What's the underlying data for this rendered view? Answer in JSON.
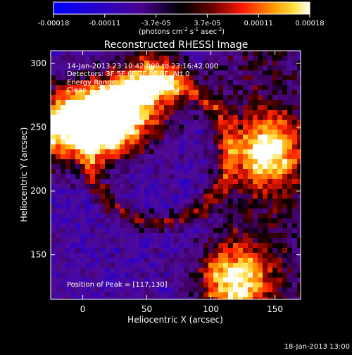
{
  "chart_data": {
    "type": "heatmap",
    "title": "Reconstructed RHESSI Image",
    "xlabel": "Heliocentric X (arcsec)",
    "ylabel": "Heliocentric Y (arcsec)",
    "xlim": [
      -25,
      170
    ],
    "ylim": [
      115,
      310
    ],
    "xticks": [
      "0",
      "50",
      "100",
      "150"
    ],
    "yticks": [
      "150",
      "200",
      "250",
      "300"
    ],
    "colorbar": {
      "ticks": [
        "-0.00018",
        "-0.00011",
        "-3.7e-05",
        "3.7e-05",
        "0.00011",
        "0.00018"
      ],
      "units_main": "(photons cm",
      "units_exp1": "-2",
      "units_mid": " s",
      "units_exp2": "-1",
      "units_end": " asec",
      "units_exp3": "-2",
      "units_close": ")",
      "min": -0.00018,
      "max": 0.00018
    },
    "annotations": {
      "line1": "14-Jan-2013 23:10:42.000 to 23:16:42.000",
      "line2": "Detectors: 3F 5F 6F 7F 8F 9F, Att 0",
      "line3": "Energy Range: 25.0 - 50.0 keV",
      "line4": "Clean     Total counts: 1.41E+04",
      "peak": "Position of Peak = [117,130]"
    },
    "bright_regions": [
      {
        "x": 10,
        "y": 258,
        "label": ""
      },
      {
        "x": 25,
        "y": 255,
        "label": ""
      },
      {
        "x": 55,
        "y": 283,
        "label": ""
      },
      {
        "x": 145,
        "y": 230,
        "label": ""
      },
      {
        "x": 117,
        "y": 130,
        "label": ""
      },
      {
        "x": -20,
        "y": 250,
        "label": ""
      }
    ]
  },
  "footer": {
    "timestamp": "18-Jan-2013 13:00"
  }
}
